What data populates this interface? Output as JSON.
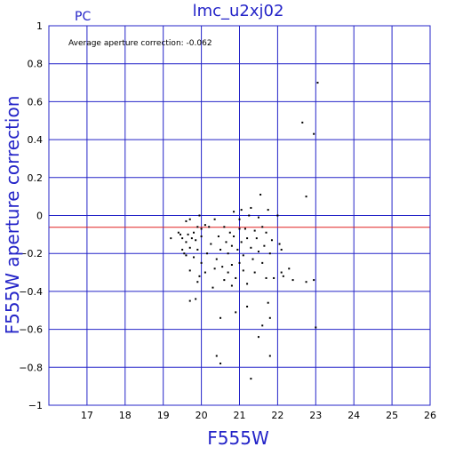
{
  "chart_data": {
    "type": "scatter",
    "title": "lmc_u2xj02",
    "subtitle": "PC",
    "annotation": "Average aperture correction: -0.062",
    "xlabel": "F555W",
    "ylabel": "F555W aperture correction",
    "xlim": [
      16,
      26
    ],
    "ylim": [
      -1,
      1
    ],
    "x_ticks": [
      "17",
      "18",
      "19",
      "20",
      "21",
      "22",
      "23",
      "24",
      "25",
      "26"
    ],
    "y_ticks": [
      "1",
      "0.8",
      "0.6",
      "0.4",
      "0.2",
      "0",
      "−0.2",
      "−0.4",
      "−0.6",
      "−0.8",
      "−1"
    ],
    "grid": true,
    "reference_line": {
      "y": -0.062,
      "color": "#e02020"
    },
    "colors": {
      "axes": "#2424c8",
      "points": "#000000"
    },
    "points": [
      {
        "x": 19.2,
        "y": -0.12
      },
      {
        "x": 19.4,
        "y": -0.09
      },
      {
        "x": 19.45,
        "y": -0.1
      },
      {
        "x": 19.5,
        "y": -0.12
      },
      {
        "x": 19.5,
        "y": -0.18
      },
      {
        "x": 19.55,
        "y": -0.2
      },
      {
        "x": 19.6,
        "y": -0.21
      },
      {
        "x": 19.6,
        "y": -0.14
      },
      {
        "x": 19.65,
        "y": -0.1
      },
      {
        "x": 19.7,
        "y": -0.02
      },
      {
        "x": 19.7,
        "y": -0.17
      },
      {
        "x": 19.75,
        "y": -0.12
      },
      {
        "x": 19.8,
        "y": -0.09
      },
      {
        "x": 19.8,
        "y": -0.22
      },
      {
        "x": 19.85,
        "y": -0.13
      },
      {
        "x": 19.9,
        "y": -0.06
      },
      {
        "x": 19.9,
        "y": -0.18
      },
      {
        "x": 19.95,
        "y": -0.0
      },
      {
        "x": 20.0,
        "y": -0.11
      },
      {
        "x": 20.0,
        "y": -0.25
      },
      {
        "x": 19.7,
        "y": -0.29
      },
      {
        "x": 19.7,
        "y": -0.45
      },
      {
        "x": 19.85,
        "y": -0.44
      },
      {
        "x": 19.9,
        "y": -0.35
      },
      {
        "x": 19.95,
        "y": -0.32
      },
      {
        "x": 20.1,
        "y": -0.05
      },
      {
        "x": 20.1,
        "y": -0.3
      },
      {
        "x": 20.15,
        "y": -0.2
      },
      {
        "x": 20.2,
        "y": -0.06
      },
      {
        "x": 20.25,
        "y": -0.15
      },
      {
        "x": 20.35,
        "y": -0.02
      },
      {
        "x": 20.35,
        "y": -0.28
      },
      {
        "x": 20.4,
        "y": -0.23
      },
      {
        "x": 20.45,
        "y": -0.11
      },
      {
        "x": 20.5,
        "y": -0.18
      },
      {
        "x": 20.55,
        "y": -0.27
      },
      {
        "x": 20.6,
        "y": -0.06
      },
      {
        "x": 20.6,
        "y": -0.34
      },
      {
        "x": 20.65,
        "y": -0.14
      },
      {
        "x": 20.7,
        "y": -0.2
      },
      {
        "x": 20.7,
        "y": -0.3
      },
      {
        "x": 20.75,
        "y": -0.09
      },
      {
        "x": 20.8,
        "y": -0.26
      },
      {
        "x": 20.8,
        "y": -0.37
      },
      {
        "x": 20.85,
        "y": 0.02
      },
      {
        "x": 20.85,
        "y": -0.11
      },
      {
        "x": 20.9,
        "y": -0.33
      },
      {
        "x": 20.95,
        "y": -0.18
      },
      {
        "x": 21.0,
        "y": -0.02
      },
      {
        "x": 21.0,
        "y": -0.07
      },
      {
        "x": 21.0,
        "y": -0.25
      },
      {
        "x": 21.05,
        "y": 0.03
      },
      {
        "x": 21.05,
        "y": -0.14
      },
      {
        "x": 21.1,
        "y": -0.21
      },
      {
        "x": 21.1,
        "y": -0.29
      },
      {
        "x": 21.15,
        "y": -0.07
      },
      {
        "x": 21.2,
        "y": -0.12
      },
      {
        "x": 21.2,
        "y": -0.48
      },
      {
        "x": 21.25,
        "y": 0.0
      },
      {
        "x": 21.3,
        "y": -0.17
      },
      {
        "x": 21.3,
        "y": 0.04
      },
      {
        "x": 21.35,
        "y": -0.23
      },
      {
        "x": 21.4,
        "y": -0.08
      },
      {
        "x": 21.4,
        "y": -0.3
      },
      {
        "x": 21.45,
        "y": -0.12
      },
      {
        "x": 21.5,
        "y": -0.01
      },
      {
        "x": 21.5,
        "y": -0.19
      },
      {
        "x": 21.55,
        "y": 0.11
      },
      {
        "x": 21.6,
        "y": -0.06
      },
      {
        "x": 21.6,
        "y": -0.25
      },
      {
        "x": 21.65,
        "y": -0.16
      },
      {
        "x": 21.7,
        "y": -0.09
      },
      {
        "x": 21.7,
        "y": -0.33
      },
      {
        "x": 21.75,
        "y": 0.03
      },
      {
        "x": 21.8,
        "y": -0.2
      },
      {
        "x": 21.85,
        "y": -0.13
      },
      {
        "x": 21.9,
        "y": -0.33
      },
      {
        "x": 22.0,
        "y": 0.0
      },
      {
        "x": 22.05,
        "y": -0.15
      },
      {
        "x": 22.1,
        "y": -0.3
      },
      {
        "x": 22.15,
        "y": -0.32
      },
      {
        "x": 22.1,
        "y": -0.18
      },
      {
        "x": 20.3,
        "y": -0.38
      },
      {
        "x": 20.5,
        "y": -0.54
      },
      {
        "x": 20.4,
        "y": -0.74
      },
      {
        "x": 20.5,
        "y": -0.78
      },
      {
        "x": 20.9,
        "y": -0.51
      },
      {
        "x": 21.3,
        "y": -0.86
      },
      {
        "x": 21.5,
        "y": -0.64
      },
      {
        "x": 21.6,
        "y": -0.58
      },
      {
        "x": 21.8,
        "y": -0.54
      },
      {
        "x": 21.8,
        "y": -0.74
      },
      {
        "x": 21.75,
        "y": -0.46
      },
      {
        "x": 22.3,
        "y": -0.28
      },
      {
        "x": 22.4,
        "y": -0.34
      },
      {
        "x": 22.65,
        "y": 0.49
      },
      {
        "x": 22.75,
        "y": 0.1
      },
      {
        "x": 22.75,
        "y": -0.35
      },
      {
        "x": 22.95,
        "y": 0.43
      },
      {
        "x": 22.95,
        "y": -0.34
      },
      {
        "x": 23.0,
        "y": -0.59
      },
      {
        "x": 23.05,
        "y": 0.7
      },
      {
        "x": 19.6,
        "y": -0.03
      },
      {
        "x": 20.8,
        "y": -0.16
      },
      {
        "x": 21.2,
        "y": -0.36
      },
      {
        "x": 20.0,
        "y": -0.07
      }
    ]
  }
}
